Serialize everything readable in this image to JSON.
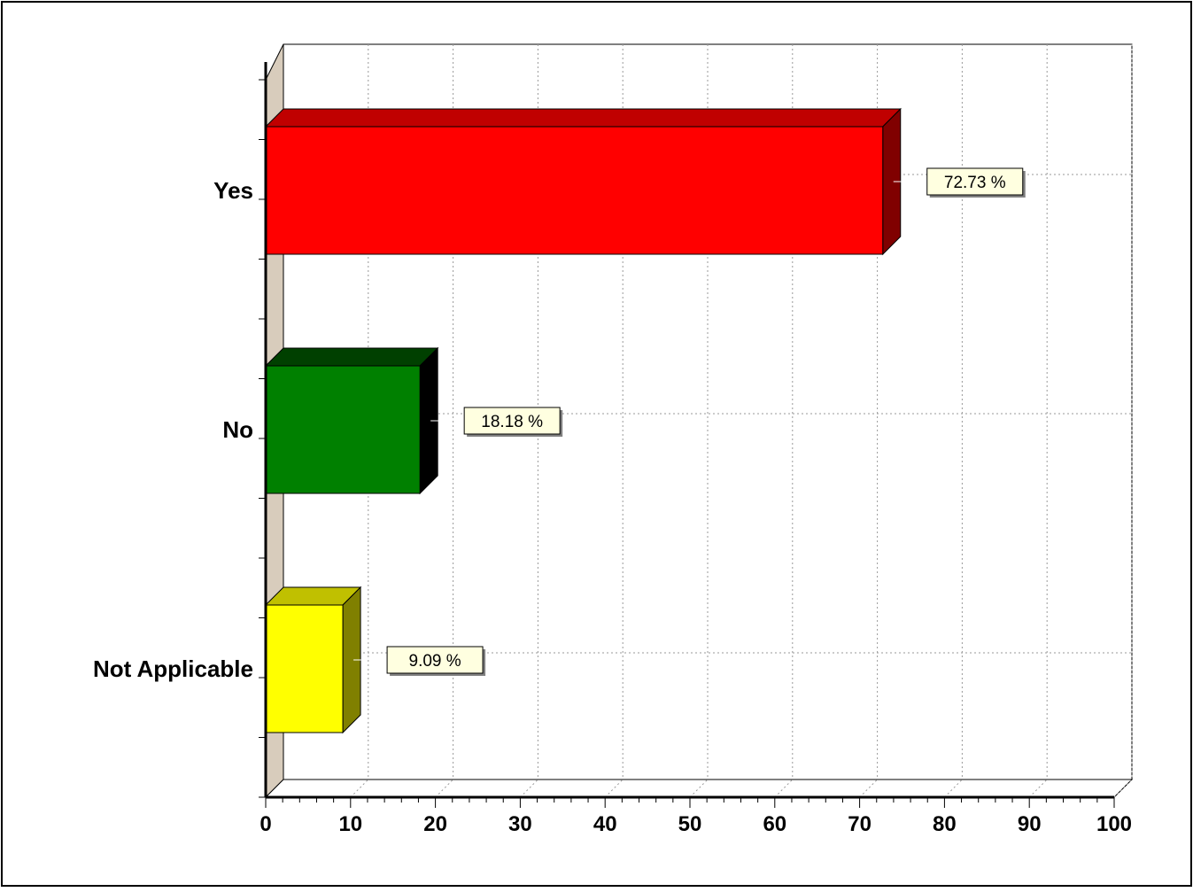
{
  "chart_data": {
    "type": "bar",
    "orientation": "horizontal",
    "style": "3d",
    "categories": [
      "Yes",
      "No",
      "Not Applicable"
    ],
    "values": [
      72.73,
      18.18,
      9.09
    ],
    "data_labels": [
      "72.73 %",
      "18.18 %",
      "9.09 %"
    ],
    "colors": [
      "#ff0000",
      "#008000",
      "#ffff00"
    ],
    "top_colors": [
      "#c00000",
      "#004000",
      "#c0c000"
    ],
    "side_colors": [
      "#800000",
      "#000000",
      "#808000"
    ],
    "xlim": [
      0,
      100
    ],
    "xticks": [
      0,
      10,
      20,
      30,
      40,
      50,
      60,
      70,
      80,
      90,
      100
    ],
    "xtick_labels": [
      "0",
      "10",
      "20",
      "30",
      "40",
      "50",
      "60",
      "70",
      "80",
      "90",
      "100"
    ],
    "grid": true,
    "legend": "none",
    "label_fill": "#ffffe0",
    "wall_color": "#d8ccbc"
  }
}
